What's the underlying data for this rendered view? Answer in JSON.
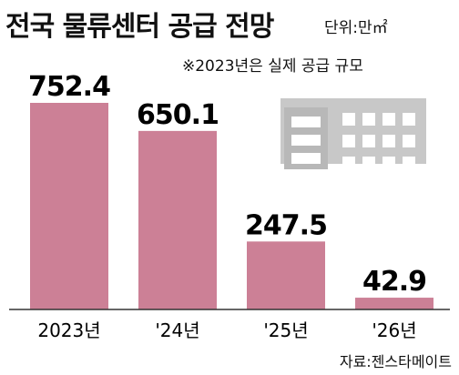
{
  "header": {
    "title": "전국 물류센터 공급 전망",
    "unit": "단위:만㎡",
    "note": "※2023년은 실제 공급 규모"
  },
  "source": "자료:젠스타메이트",
  "colors": {
    "bar": "#cc8096",
    "building": "#c8c8c8",
    "axis": "#333333"
  },
  "chart_data": {
    "type": "bar",
    "categories": [
      "2023년",
      "'24년",
      "'25년",
      "'26년"
    ],
    "values": [
      752.4,
      650.1,
      247.5,
      42.9
    ],
    "value_labels": [
      "752.4",
      "650.1",
      "247.5",
      "42.9"
    ],
    "title": "전국 물류센터 공급 전망",
    "unit": "만㎡",
    "ylim": [
      0,
      752.4
    ],
    "grid": false
  }
}
